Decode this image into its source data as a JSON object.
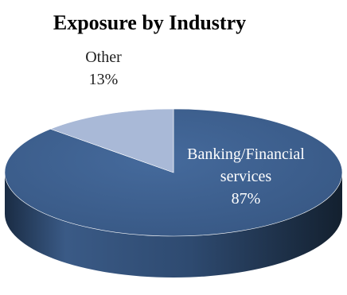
{
  "chart_data": {
    "type": "pie",
    "title": "Exposure by Industry",
    "slices": [
      {
        "name_lines": [
          "Banking/Financial",
          "services"
        ],
        "value": 87,
        "value_label": "87%",
        "color": "#3f6191"
      },
      {
        "name_lines": [
          "Other"
        ],
        "value": 13,
        "value_label": "13%",
        "color": "#a9b9d7"
      }
    ],
    "legend": "none",
    "style": "3d-tilted"
  }
}
